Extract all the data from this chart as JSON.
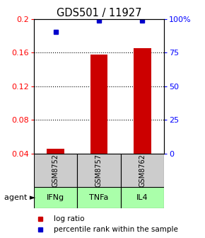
{
  "title": "GDS501 / 11927",
  "samples": [
    "GSM8752",
    "GSM8757",
    "GSM8762"
  ],
  "agents": [
    "IFNg",
    "TNFa",
    "IL4"
  ],
  "bar_values": [
    0.046,
    0.158,
    0.165
  ],
  "dot_values": [
    0.185,
    0.198,
    0.198
  ],
  "ylim": [
    0.04,
    0.2
  ],
  "yticks_left": [
    0.04,
    0.08,
    0.12,
    0.16,
    0.2
  ],
  "yticks_left_labels": [
    "0.04",
    "0.08",
    "0.12",
    "0.16",
    "0.2"
  ],
  "yticks_right_labels": [
    "0",
    "25",
    "50",
    "75",
    "100%"
  ],
  "bar_color": "#cc0000",
  "dot_color": "#0000cc",
  "sample_box_color": "#cccccc",
  "agent_box_color": "#aaffaa",
  "bar_width": 0.4,
  "legend_items": [
    "log ratio",
    "percentile rank within the sample"
  ],
  "agent_label": "agent"
}
